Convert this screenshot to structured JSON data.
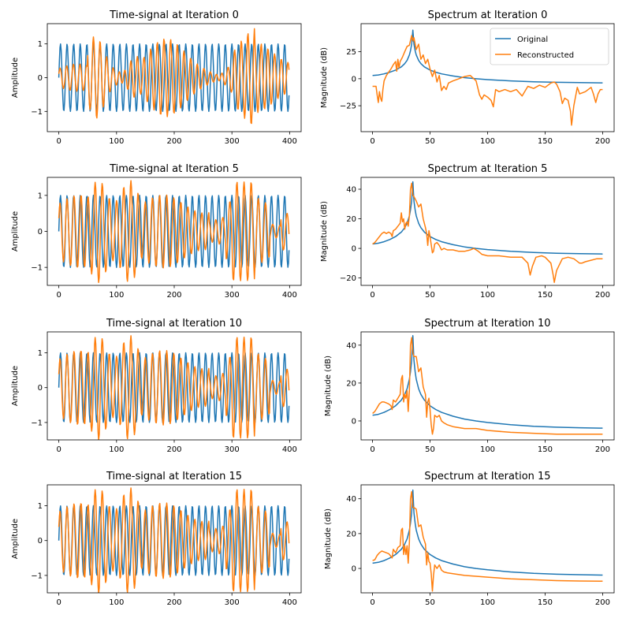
{
  "chart_data": [
    {
      "type": "line",
      "panel": "time-0",
      "title": "Time-signal at Iteration 0",
      "xlabel": "",
      "ylabel": "Amplitude",
      "xlim": [
        -20,
        420
      ],
      "ylim": [
        -1.6,
        1.6
      ],
      "xticks": [
        0,
        100,
        200,
        300,
        400
      ],
      "yticks": [
        -1,
        0,
        1
      ],
      "ytick_labels": [
        "−1",
        "0",
        "1"
      ],
      "series": [
        {
          "name": "Original",
          "color": "#1f77b4",
          "kind": "sine",
          "n": 400,
          "cycles": 35,
          "amplitude": 1.0
        },
        {
          "name": "Reconstructed",
          "color": "#ff7f0e",
          "kind": "reconstructed",
          "iteration": 0,
          "peak_abs": 1.45
        }
      ]
    },
    {
      "type": "line",
      "panel": "spec-0",
      "title": "Spectrum at Iteration 0",
      "xlabel": "",
      "ylabel": "Magnitude (dB)",
      "xlim": [
        -10,
        210
      ],
      "ylim": [
        -49,
        51
      ],
      "xticks": [
        0,
        50,
        100,
        150,
        200
      ],
      "yticks": [
        -25,
        0,
        25
      ],
      "ytick_labels": [
        "−25",
        "0",
        "25"
      ],
      "legend": {
        "position": "top-right",
        "entries": [
          "Original",
          "Reconstructed"
        ]
      },
      "series": [
        {
          "name": "Original",
          "color": "#1f77b4",
          "x": [
            0,
            5,
            10,
            15,
            20,
            25,
            28,
            30,
            32,
            33,
            34,
            35,
            36,
            37,
            38,
            40,
            42,
            45,
            50,
            55,
            60,
            70,
            80,
            90,
            100,
            120,
            140,
            160,
            180,
            200
          ],
          "y": [
            3,
            3.5,
            4.5,
            6,
            8,
            11,
            14,
            17,
            22,
            26,
            32,
            45,
            32,
            26,
            22,
            17,
            14,
            11,
            8,
            6,
            4.5,
            2.5,
            1,
            0,
            -0.8,
            -2,
            -2.8,
            -3.3,
            -3.6,
            -3.8
          ]
        },
        {
          "name": "Reconstructed",
          "color": "#ff7f0e",
          "x": [
            0,
            2,
            3,
            4,
            5,
            6,
            7,
            8,
            9,
            10,
            12,
            14,
            16,
            18,
            20,
            21,
            22,
            23,
            24,
            26,
            28,
            30,
            32,
            34,
            35,
            36,
            38,
            40,
            42,
            44,
            46,
            48,
            50,
            52,
            54,
            56,
            58,
            60,
            62,
            64,
            66,
            70,
            75,
            80,
            85,
            90,
            93,
            95,
            97,
            100,
            103,
            105,
            107,
            110,
            115,
            120,
            125,
            130,
            135,
            140,
            145,
            150,
            155,
            158,
            160,
            163,
            165,
            167,
            170,
            172,
            173,
            175,
            178,
            180,
            185,
            190,
            192,
            194,
            196,
            198,
            200
          ],
          "y": [
            -7,
            -7,
            -7,
            -15,
            -22,
            -12,
            -18,
            -21,
            -10,
            -2,
            3,
            6,
            9,
            13,
            16,
            7,
            18,
            10,
            16,
            20,
            25,
            30,
            31,
            40,
            35,
            38,
            27,
            32,
            18,
            22,
            14,
            18,
            9,
            2,
            8,
            -3,
            3,
            -11,
            -7,
            -10,
            -4,
            -2,
            0,
            2,
            3,
            -2,
            -15,
            -19,
            -15,
            -17,
            -20,
            -26,
            -10,
            -12,
            -10,
            -12,
            -10,
            -16,
            -7,
            -9,
            -6,
            -8,
            -4,
            -3,
            -5,
            -12,
            -23,
            -18,
            -20,
            -30,
            -43,
            -25,
            -8,
            -14,
            -12,
            -8,
            -14,
            -22,
            -14,
            -10,
            -10
          ]
        }
      ]
    },
    {
      "type": "line",
      "panel": "time-5",
      "title": "Time-signal at Iteration 5",
      "xlabel": "",
      "ylabel": "Amplitude",
      "xlim": [
        -20,
        420
      ],
      "ylim": [
        -1.5,
        1.5
      ],
      "xticks": [
        0,
        100,
        200,
        300,
        400
      ],
      "yticks": [
        -1,
        0,
        1
      ],
      "ytick_labels": [
        "−1",
        "0",
        "1"
      ],
      "series": [
        {
          "name": "Original",
          "color": "#1f77b4",
          "kind": "sine",
          "n": 400,
          "cycles": 35,
          "amplitude": 1.0
        },
        {
          "name": "Reconstructed",
          "color": "#ff7f0e",
          "kind": "reconstructed",
          "iteration": 5,
          "peak_abs": 1.42
        }
      ]
    },
    {
      "type": "line",
      "panel": "spec-5",
      "title": "Spectrum at Iteration 5",
      "xlabel": "",
      "ylabel": "Magnitude (dB)",
      "xlim": [
        -10,
        210
      ],
      "ylim": [
        -25,
        48
      ],
      "xticks": [
        0,
        50,
        100,
        150,
        200
      ],
      "yticks": [
        -20,
        0,
        20,
        40
      ],
      "ytick_labels": [
        "−20",
        "0",
        "20",
        "40"
      ],
      "series": [
        {
          "name": "Original",
          "color": "#1f77b4",
          "x": [
            0,
            5,
            10,
            15,
            20,
            25,
            28,
            30,
            32,
            33,
            34,
            35,
            36,
            37,
            38,
            40,
            42,
            45,
            50,
            55,
            60,
            70,
            80,
            90,
            100,
            120,
            140,
            160,
            180,
            200
          ],
          "y": [
            3,
            3.5,
            4.5,
            6,
            8,
            11,
            14,
            17,
            22,
            26,
            32,
            45,
            32,
            26,
            22,
            17,
            14,
            11,
            8,
            6,
            4.5,
            2.5,
            1,
            0,
            -0.8,
            -2,
            -2.8,
            -3.3,
            -3.6,
            -3.8
          ]
        },
        {
          "name": "Reconstructed",
          "color": "#ff7f0e",
          "x": [
            0,
            2,
            4,
            6,
            8,
            10,
            12,
            14,
            16,
            17,
            18,
            20,
            22,
            24,
            25,
            26,
            27,
            28,
            29,
            30,
            31,
            32,
            33,
            34,
            35,
            36,
            38,
            40,
            42,
            44,
            46,
            47,
            48,
            49,
            50,
            52,
            53,
            54,
            56,
            58,
            60,
            62,
            65,
            70,
            75,
            80,
            85,
            88,
            92,
            95,
            100,
            110,
            120,
            130,
            135,
            137,
            139,
            142,
            147,
            150,
            155,
            157,
            158,
            160,
            165,
            170,
            175,
            180,
            182,
            185,
            190,
            195,
            200
          ],
          "y": [
            3,
            4,
            6,
            8,
            10,
            11,
            10,
            11,
            10,
            8,
            12,
            13,
            15,
            17,
            24,
            18,
            20,
            13,
            17,
            18,
            15,
            22,
            40,
            44,
            36,
            35,
            32,
            28,
            30,
            20,
            14,
            10,
            2,
            12,
            8,
            -3,
            -2,
            3,
            4,
            2,
            -1,
            0,
            -1,
            -1,
            -2,
            -2,
            -1,
            0,
            -2,
            -4,
            -5,
            -5,
            -6,
            -6,
            -10,
            -18,
            -12,
            -6,
            -5,
            -6,
            -10,
            -18,
            -23,
            -15,
            -7,
            -6,
            -7,
            -10,
            -10,
            -9,
            -8,
            -7,
            -7
          ]
        }
      ]
    },
    {
      "type": "line",
      "panel": "time-10",
      "title": "Time-signal at Iteration 10",
      "xlabel": "",
      "ylabel": "Amplitude",
      "xlim": [
        -20,
        420
      ],
      "ylim": [
        -1.5,
        1.6
      ],
      "xticks": [
        0,
        100,
        200,
        300,
        400
      ],
      "yticks": [
        -1,
        0,
        1
      ],
      "ytick_labels": [
        "−1",
        "0",
        "1"
      ],
      "series": [
        {
          "name": "Original",
          "color": "#1f77b4",
          "kind": "sine",
          "n": 400,
          "cycles": 35,
          "amplitude": 1.0
        },
        {
          "name": "Reconstructed",
          "color": "#ff7f0e",
          "kind": "reconstructed",
          "iteration": 10,
          "peak_abs": 1.5
        }
      ]
    },
    {
      "type": "line",
      "panel": "spec-10",
      "title": "Spectrum at Iteration 10",
      "xlabel": "",
      "ylabel": "Magnitude (dB)",
      "xlim": [
        -10,
        210
      ],
      "ylim": [
        -10,
        47
      ],
      "xticks": [
        0,
        50,
        100,
        150,
        200
      ],
      "yticks": [
        0,
        20,
        40
      ],
      "ytick_labels": [
        "0",
        "20",
        "40"
      ],
      "series": [
        {
          "name": "Original",
          "color": "#1f77b4",
          "x": [
            0,
            5,
            10,
            15,
            20,
            25,
            28,
            30,
            32,
            33,
            34,
            35,
            36,
            37,
            38,
            40,
            42,
            45,
            50,
            55,
            60,
            70,
            80,
            90,
            100,
            120,
            140,
            160,
            180,
            200
          ],
          "y": [
            3,
            3.5,
            4.5,
            6,
            8,
            11,
            14,
            17,
            22,
            26,
            32,
            45,
            32,
            26,
            22,
            17,
            14,
            11,
            8,
            6,
            4.5,
            2.5,
            1,
            0,
            -0.8,
            -2,
            -2.8,
            -3.3,
            -3.6,
            -3.8
          ]
        },
        {
          "name": "Reconstructed",
          "color": "#ff7f0e",
          "x": [
            0,
            2,
            4,
            6,
            8,
            10,
            12,
            14,
            16,
            17,
            18,
            20,
            22,
            24,
            25,
            26,
            27,
            28,
            29,
            30,
            31,
            32,
            33,
            34,
            35,
            36,
            38,
            40,
            42,
            44,
            46,
            47,
            48,
            49,
            50,
            51,
            52,
            53,
            54,
            56,
            58,
            60,
            62,
            65,
            70,
            80,
            90,
            100,
            120,
            140,
            160,
            180,
            200
          ],
          "y": [
            4,
            5,
            7,
            9,
            10,
            10,
            9.5,
            9,
            8,
            6,
            11,
            10,
            12,
            14,
            22,
            24,
            10,
            14,
            12,
            16,
            5,
            16,
            40,
            44,
            36,
            34,
            34,
            26,
            28,
            18,
            14,
            2,
            10,
            12,
            6,
            -2,
            -7,
            -4,
            3,
            2,
            3,
            0,
            -1,
            -2,
            -3,
            -4,
            -4,
            -5,
            -6,
            -6.5,
            -7,
            -7,
            -7
          ]
        }
      ]
    },
    {
      "type": "line",
      "panel": "time-15",
      "title": "Time-signal at Iteration 15",
      "xlabel": "",
      "ylabel": "Amplitude",
      "xlim": [
        -20,
        420
      ],
      "ylim": [
        -1.5,
        1.6
      ],
      "xticks": [
        0,
        100,
        200,
        300,
        400
      ],
      "yticks": [
        -1,
        0,
        1
      ],
      "ytick_labels": [
        "−1",
        "0",
        "1"
      ],
      "series": [
        {
          "name": "Original",
          "color": "#1f77b4",
          "kind": "sine",
          "n": 400,
          "cycles": 35,
          "amplitude": 1.0
        },
        {
          "name": "Reconstructed",
          "color": "#ff7f0e",
          "kind": "reconstructed",
          "iteration": 15,
          "peak_abs": 1.52
        }
      ]
    },
    {
      "type": "line",
      "panel": "spec-15",
      "title": "Spectrum at Iteration 15",
      "xlabel": "",
      "ylabel": "Magnitude (dB)",
      "xlim": [
        -10,
        210
      ],
      "ylim": [
        -14,
        48
      ],
      "xticks": [
        0,
        50,
        100,
        150,
        200
      ],
      "yticks": [
        0,
        20,
        40
      ],
      "ytick_labels": [
        "0",
        "20",
        "40"
      ],
      "series": [
        {
          "name": "Original",
          "color": "#1f77b4",
          "x": [
            0,
            5,
            10,
            15,
            20,
            25,
            28,
            30,
            32,
            33,
            34,
            35,
            36,
            37,
            38,
            40,
            42,
            45,
            50,
            55,
            60,
            70,
            80,
            90,
            100,
            120,
            140,
            160,
            180,
            200
          ],
          "y": [
            3,
            3.5,
            4.5,
            6,
            8,
            11,
            14,
            17,
            22,
            26,
            32,
            45,
            32,
            26,
            22,
            17,
            14,
            11,
            8,
            6,
            4.5,
            2.5,
            1,
            0,
            -0.8,
            -2,
            -2.8,
            -3.3,
            -3.6,
            -3.8
          ]
        },
        {
          "name": "Reconstructed",
          "color": "#ff7f0e",
          "x": [
            0,
            2,
            4,
            6,
            8,
            10,
            12,
            14,
            16,
            17,
            18,
            20,
            22,
            24,
            25,
            26,
            27,
            28,
            29,
            30,
            31,
            32,
            33,
            34,
            35,
            36,
            38,
            40,
            42,
            44,
            46,
            47,
            48,
            49,
            50,
            51,
            52,
            53,
            54,
            56,
            58,
            60,
            62,
            65,
            70,
            80,
            90,
            100,
            120,
            140,
            160,
            180,
            200
          ],
          "y": [
            4.5,
            5,
            7.5,
            9,
            10,
            9.5,
            9,
            8.5,
            7,
            6,
            11,
            9,
            12,
            13,
            22,
            23,
            8,
            13,
            8,
            13,
            3,
            15,
            40,
            44,
            35,
            35,
            34,
            24,
            25,
            18,
            14,
            2,
            9,
            4,
            3,
            -3,
            -13,
            -4,
            2,
            0,
            2,
            -1,
            -2,
            -2.5,
            -3,
            -4,
            -4.5,
            -5,
            -6,
            -6.5,
            -7,
            -7.2,
            -7.3
          ]
        }
      ]
    }
  ],
  "legend": {
    "entries": [
      {
        "label": "Original",
        "color": "#1f77b4"
      },
      {
        "label": "Reconstructed",
        "color": "#ff7f0e"
      }
    ]
  }
}
